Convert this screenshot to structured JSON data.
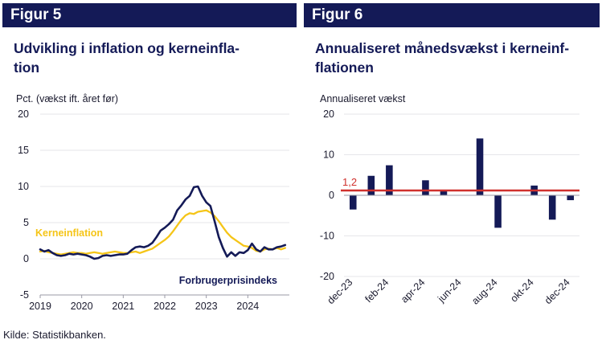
{
  "source": "Kilde:  Statistikbanken.",
  "chart_data": [
    {
      "type": "line",
      "figure_label": "Figur 5",
      "title": "Udvikling i inflation og kerneinfla-\ntion",
      "ylabel": "Pct. (vækst ift. året før)",
      "ylim": [
        -5,
        20
      ],
      "yticks": [
        "20",
        "15",
        "10",
        "5",
        "0",
        "-5"
      ],
      "xticks": [
        "2019",
        "2020",
        "2021",
        "2022",
        "2023",
        "2024"
      ],
      "xlim": [
        2019.0,
        2025.0
      ],
      "series": [
        {
          "name": "Forbrugerprisindeks",
          "color": "#141a57",
          "x": [
            2019.0,
            2019.1,
            2019.2,
            2019.3,
            2019.4,
            2019.5,
            2019.6,
            2019.7,
            2019.8,
            2019.9,
            2020.0,
            2020.1,
            2020.2,
            2020.3,
            2020.4,
            2020.5,
            2020.6,
            2020.7,
            2020.8,
            2020.9,
            2021.0,
            2021.1,
            2021.2,
            2021.3,
            2021.4,
            2021.5,
            2021.6,
            2021.7,
            2021.8,
            2021.9,
            2022.0,
            2022.1,
            2022.2,
            2022.3,
            2022.4,
            2022.5,
            2022.6,
            2022.7,
            2022.8,
            2022.9,
            2023.0,
            2023.1,
            2023.2,
            2023.3,
            2023.4,
            2023.5,
            2023.6,
            2023.7,
            2023.8,
            2023.9,
            2024.0,
            2024.1,
            2024.2,
            2024.3,
            2024.4,
            2024.5,
            2024.6,
            2024.7,
            2024.8,
            2024.9
          ],
          "y": [
            1.3,
            1.0,
            1.2,
            0.8,
            0.5,
            0.4,
            0.5,
            0.7,
            0.6,
            0.7,
            0.6,
            0.5,
            0.3,
            0.0,
            0.1,
            0.4,
            0.5,
            0.4,
            0.5,
            0.6,
            0.6,
            0.7,
            1.2,
            1.6,
            1.7,
            1.6,
            1.8,
            2.2,
            3.0,
            3.9,
            4.3,
            4.8,
            5.4,
            6.7,
            7.4,
            8.2,
            8.7,
            9.9,
            10.0,
            8.7,
            7.8,
            7.3,
            5.2,
            3.0,
            1.5,
            0.3,
            0.9,
            0.4,
            0.9,
            0.8,
            1.2,
            2.1,
            1.3,
            1.0,
            1.6,
            1.3,
            1.3,
            1.6,
            1.7,
            1.9
          ]
        },
        {
          "name": "Kerneinflation",
          "color": "#f5c518",
          "x": [
            2019.0,
            2019.1,
            2019.2,
            2019.3,
            2019.4,
            2019.5,
            2019.6,
            2019.7,
            2019.8,
            2019.9,
            2020.0,
            2020.1,
            2020.2,
            2020.3,
            2020.4,
            2020.5,
            2020.6,
            2020.7,
            2020.8,
            2020.9,
            2021.0,
            2021.1,
            2021.2,
            2021.3,
            2021.4,
            2021.5,
            2021.6,
            2021.7,
            2021.8,
            2021.9,
            2022.0,
            2022.1,
            2022.2,
            2022.3,
            2022.4,
            2022.5,
            2022.6,
            2022.7,
            2022.8,
            2022.9,
            2023.0,
            2023.1,
            2023.2,
            2023.3,
            2023.4,
            2023.5,
            2023.6,
            2023.7,
            2023.8,
            2023.9,
            2024.0,
            2024.1,
            2024.2,
            2024.3,
            2024.4,
            2024.5,
            2024.6,
            2024.7,
            2024.8,
            2024.9
          ],
          "y": [
            1.0,
            1.1,
            0.9,
            0.8,
            0.7,
            0.6,
            0.7,
            0.8,
            0.9,
            0.8,
            0.8,
            0.7,
            0.8,
            0.9,
            0.8,
            0.7,
            0.8,
            0.9,
            1.0,
            0.9,
            0.8,
            0.8,
            0.9,
            1.0,
            0.8,
            1.0,
            1.2,
            1.4,
            1.8,
            2.2,
            2.6,
            3.1,
            3.8,
            4.6,
            5.4,
            6.0,
            6.3,
            6.2,
            6.5,
            6.6,
            6.7,
            6.4,
            5.9,
            5.2,
            4.4,
            3.6,
            3.0,
            2.6,
            2.2,
            1.8,
            1.7,
            1.5,
            1.1,
            1.0,
            1.3,
            1.4,
            1.3,
            1.5,
            1.3,
            1.5
          ]
        }
      ],
      "annotations": [
        "Kerneinflation",
        "Forbrugerprisindeks"
      ]
    },
    {
      "type": "bar",
      "figure_label": "Figur 6",
      "title": "Annualiseret månedsvækst i kerneinf-\nflationen",
      "ylabel": "Annualiseret vækst",
      "ylim": [
        -20,
        20
      ],
      "yticks": [
        "20",
        "10",
        "0",
        "-10",
        "-20"
      ],
      "categories": [
        "dec-23",
        "jan-24",
        "feb-24",
        "mar-24",
        "apr-24",
        "maj-24",
        "jun-24",
        "jul-24",
        "aug-24",
        "sep-24",
        "okt-24",
        "nov-24",
        "dec-24"
      ],
      "xtick_labels": [
        "dec-23",
        "feb-24",
        "apr-24",
        "jun-24",
        "aug-24",
        "okt-24",
        "dec-24"
      ],
      "values": [
        -3.5,
        4.8,
        7.4,
        0.0,
        3.7,
        1.2,
        0.0,
        14.0,
        -8.0,
        0.0,
        2.4,
        -6.0,
        -1.2
      ],
      "bar_color": "#141a57",
      "reference_line": {
        "value": 1.2,
        "label": "1,2",
        "color": "#d0312d"
      }
    }
  ]
}
